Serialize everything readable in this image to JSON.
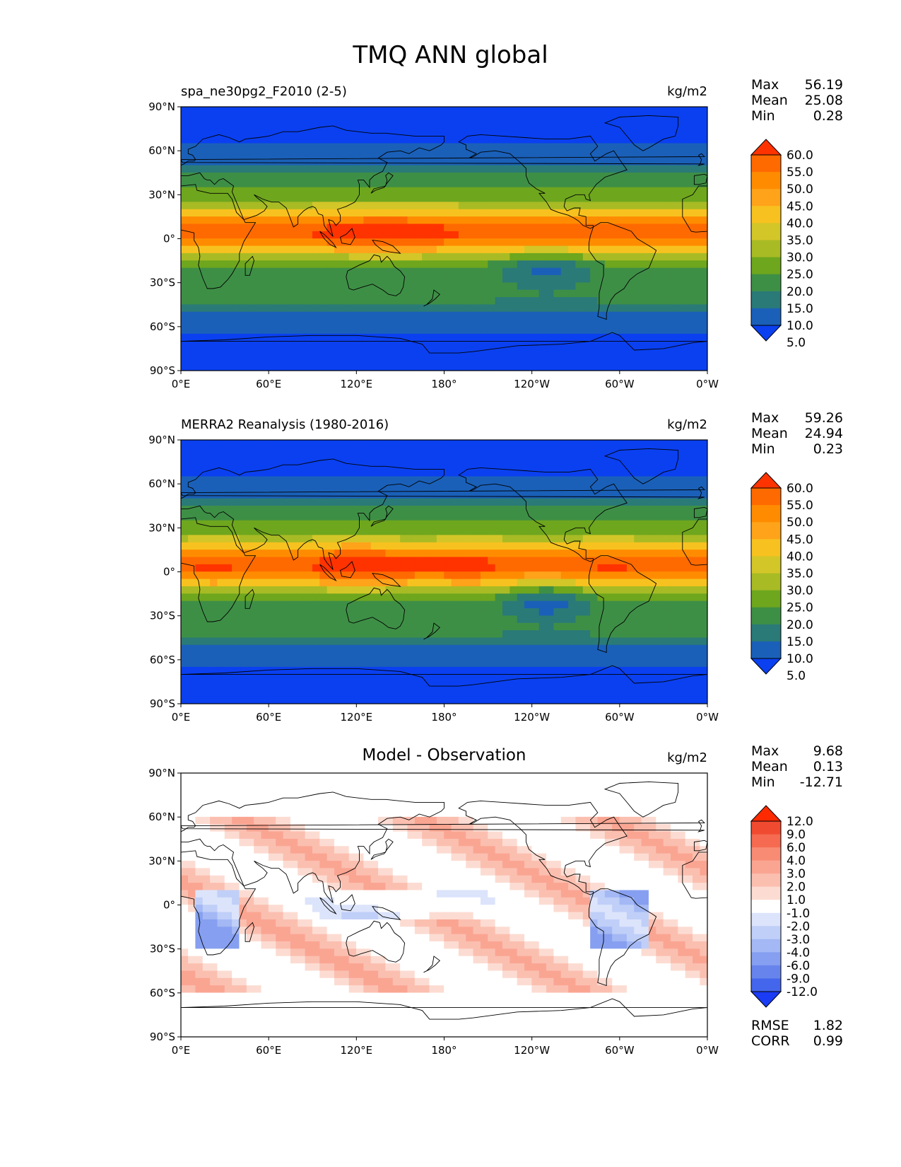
{
  "page": {
    "title": "TMQ ANN global"
  },
  "axes": {
    "lat_labels": [
      "90°N",
      "60°N",
      "30°N",
      "0°",
      "30°S",
      "60°S",
      "90°S"
    ],
    "lon_labels": [
      "0°E",
      "60°E",
      "120°E",
      "180°",
      "120°W",
      "60°W",
      "0°W"
    ]
  },
  "panels": [
    {
      "title": "spa_ne30pg2_F2010 (2-5)",
      "title_style": "left",
      "units": "kg/m2",
      "stats": {
        "max_label": "Max",
        "max": "56.19",
        "mean_label": "Mean",
        "mean": "25.08",
        "min_label": "Min",
        "min": "0.28"
      },
      "field": "abs",
      "colorbar": {
        "labels": [
          "60.0",
          "55.0",
          "50.0",
          "45.0",
          "40.0",
          "35.0",
          "30.0",
          "25.0",
          "20.0",
          "15.0",
          "10.0",
          "5.0"
        ],
        "colors": [
          "#ff3300",
          "#ff6a00",
          "#ff8c00",
          "#ffa31a",
          "#f7c21f",
          "#d3c628",
          "#a8bb24",
          "#6ea61e",
          "#3e8f46",
          "#2a7a78",
          "#1a60b8",
          "#0a40f0"
        ]
      }
    },
    {
      "title": "MERRA2 Reanalysis (1980-2016)",
      "title_style": "left",
      "units": "kg/m2",
      "stats": {
        "max_label": "Max",
        "max": "59.26",
        "mean_label": "Mean",
        "mean": "24.94",
        "min_label": "Min",
        "min": "0.23"
      },
      "field": "abs",
      "colorbar": {
        "labels": [
          "60.0",
          "55.0",
          "50.0",
          "45.0",
          "40.0",
          "35.0",
          "30.0",
          "25.0",
          "20.0",
          "15.0",
          "10.0",
          "5.0"
        ],
        "colors": [
          "#ff3300",
          "#ff6a00",
          "#ff8c00",
          "#ffa31a",
          "#f7c21f",
          "#d3c628",
          "#a8bb24",
          "#6ea61e",
          "#3e8f46",
          "#2a7a78",
          "#1a60b8",
          "#0a40f0"
        ]
      }
    },
    {
      "title": "Model - Observation",
      "title_style": "center",
      "units": "kg/m2",
      "stats": {
        "max_label": "Max",
        "max": "9.68",
        "mean_label": "Mean",
        "mean": "0.13",
        "min_label": "Min",
        "min": "-12.71"
      },
      "field": "diff",
      "colorbar": {
        "labels": [
          "12.0",
          "9.0",
          "6.0",
          "4.0",
          "3.0",
          "2.0",
          "1.0",
          "-1.0",
          "-2.0",
          "-3.0",
          "-4.0",
          "-6.0",
          "-9.0",
          "-12.0"
        ],
        "colors": [
          "#ff2a00",
          "#f04a30",
          "#f56a50",
          "#f88b74",
          "#faa592",
          "#fbbfb0",
          "#fcdcd2",
          "#ffffff",
          "#dce4fb",
          "#c0cff8",
          "#a3b8f4",
          "#869ff0",
          "#6784ec",
          "#4466ec",
          "#1a3cf5"
        ]
      },
      "error_stats": {
        "rmse_label": "RMSE",
        "rmse": "1.82",
        "corr_label": "CORR",
        "corr": "0.99"
      }
    }
  ]
}
